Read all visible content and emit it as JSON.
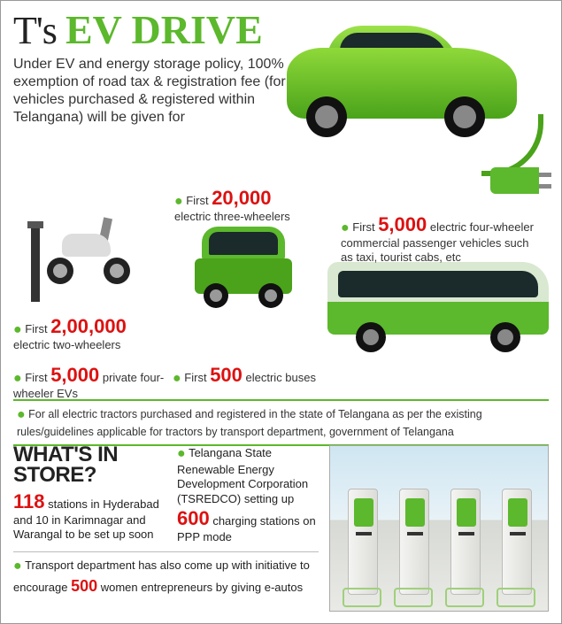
{
  "colors": {
    "accent_green": "#5cb82c",
    "dark_green": "#4aa31a",
    "number_red": "#d11",
    "text": "#333",
    "heading": "#222"
  },
  "headline": {
    "pre": "T's ",
    "accent": "EV DRIVE"
  },
  "lede": "Under EV and energy storage policy, 100% exemption of road tax & registration fee (for vehicles purchased & registered within Telangana) will be given for",
  "items": {
    "three_wheeler": {
      "pre": "First ",
      "num": "20,000",
      "post": "electric three-wheelers"
    },
    "four_wheeler_commercial": {
      "pre": "First ",
      "num": "5,000",
      "post": " electric four-wheeler commercial passenger vehicles such as taxi, tourist cabs, etc"
    },
    "two_wheeler": {
      "pre": "First ",
      "num": "2,00,000",
      "post": "electric two-wheelers"
    },
    "four_wheeler_private": {
      "pre": "First ",
      "num": "5,000",
      "post": " private four-wheeler EVs"
    },
    "bus": {
      "pre": "First ",
      "num": "500",
      "post": " electric buses"
    }
  },
  "tractor_note": "For all electric tractors purchased and registered in the state of Telangana as per the existing rules/guidelines applicable for tractors by transport department, government of Telangana",
  "store": {
    "heading_l1": "WHAT'S IN",
    "heading_l2": "STORE?",
    "stations_num": "118",
    "stations_text": " stations in Hyderabad and 10 in Karimnagar and Warangal to be set up soon"
  },
  "tsredco": {
    "lead": "Telangana State Renewable Energy Development Corporation (TSREDCO) setting up",
    "num": "600",
    "post": " charging stations on PPP mode"
  },
  "women": {
    "lead": "Transport department has also come up with initiative to encourage ",
    "num": "500",
    "post": " women entrepreneurs by giving e-autos"
  }
}
